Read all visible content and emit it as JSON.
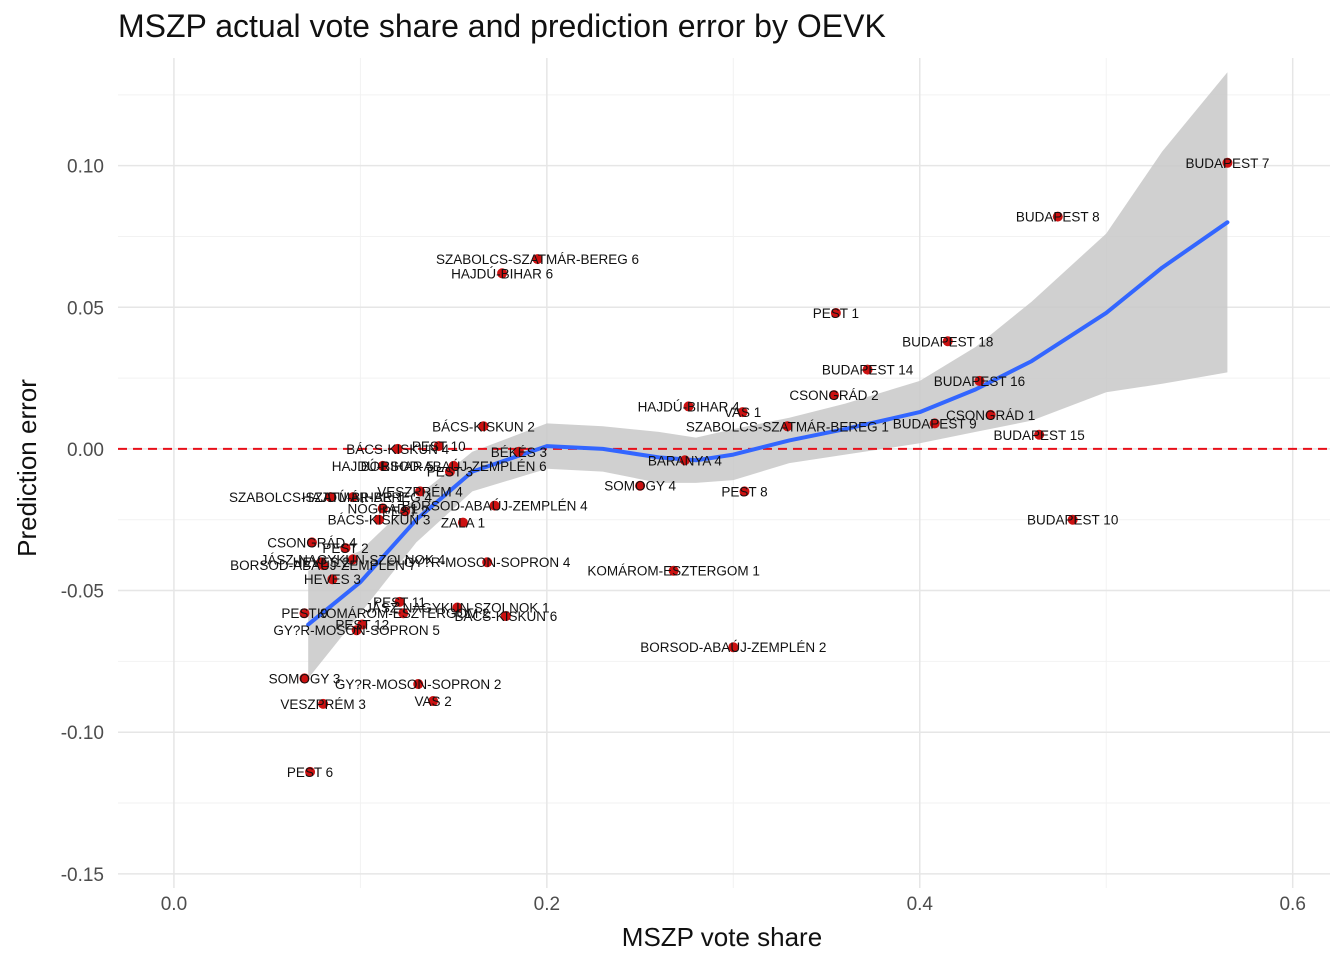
{
  "chart_data": {
    "type": "scatter",
    "title": "MSZP actual vote share and prediction error by OEVK",
    "xlabel": "MSZP vote share",
    "ylabel": "Prediction error",
    "xlim": [
      -0.03,
      0.62
    ],
    "ylim": [
      -0.155,
      0.138
    ],
    "x_ticks": [
      0.0,
      0.2,
      0.4,
      0.6
    ],
    "x_tick_labels": [
      "0.0",
      "0.2",
      "0.4",
      "0.6"
    ],
    "y_ticks": [
      0.1,
      0.05,
      0.0,
      -0.05,
      -0.1,
      -0.15
    ],
    "y_tick_labels": [
      "0.10",
      "0.05",
      "0.00",
      "-0.05",
      "-0.10",
      "-0.15"
    ],
    "grid": true,
    "reference_line": {
      "y": 0,
      "style": "dashed",
      "color": "#e8101a"
    },
    "colors": {
      "point": "#cc1111",
      "smooth": "#3366ff",
      "band": "#c8c8c8"
    },
    "points": [
      {
        "label": "BUDAPEST 7",
        "x": 0.565,
        "y": 0.101
      },
      {
        "label": "BUDAPEST 8",
        "x": 0.474,
        "y": 0.082
      },
      {
        "label": "SZABOLCS-SZATMÁR-BEREG 6",
        "x": 0.195,
        "y": 0.067
      },
      {
        "label": "HAJDÚ-BIHAR 6",
        "x": 0.176,
        "y": 0.062
      },
      {
        "label": "PEST 1",
        "x": 0.355,
        "y": 0.048
      },
      {
        "label": "BUDAPEST 18",
        "x": 0.415,
        "y": 0.038
      },
      {
        "label": "BUDAPEST 14",
        "x": 0.372,
        "y": 0.028
      },
      {
        "label": "BUDAPEST 16",
        "x": 0.432,
        "y": 0.024
      },
      {
        "label": "CSONGRÁD 2",
        "x": 0.354,
        "y": 0.019
      },
      {
        "label": "HAJDÚ-BIHAR 4",
        "x": 0.276,
        "y": 0.015
      },
      {
        "label": "VAS 1",
        "x": 0.305,
        "y": 0.013
      },
      {
        "label": "CSONGRÁD 1",
        "x": 0.438,
        "y": 0.012
      },
      {
        "label": "BUDAPEST 9",
        "x": 0.408,
        "y": 0.009
      },
      {
        "label": "SZABOLCS-SZATMÁR-BEREG 1",
        "x": 0.329,
        "y": 0.008
      },
      {
        "label": "BÁCS-KISKUN 2",
        "x": 0.166,
        "y": 0.008
      },
      {
        "label": "BUDAPEST 15",
        "x": 0.464,
        "y": 0.005
      },
      {
        "label": "PEST 10",
        "x": 0.142,
        "y": 0.001
      },
      {
        "label": "BÁCS-KISKUN 4",
        "x": 0.12,
        "y": 0.0
      },
      {
        "label": "BÉKÉS 3",
        "x": 0.185,
        "y": -0.001
      },
      {
        "label": "BARANYA 4",
        "x": 0.274,
        "y": -0.004
      },
      {
        "label": "HAJDÚ-BIHAR 5",
        "x": 0.112,
        "y": -0.006
      },
      {
        "label": "BORSOD-ABAÚJ-ZEMPLÉN 6",
        "x": 0.15,
        "y": -0.006
      },
      {
        "label": "PEST 3",
        "x": 0.148,
        "y": -0.008
      },
      {
        "label": "SOMOGY 4",
        "x": 0.25,
        "y": -0.013
      },
      {
        "label": "VESZPRÉM 4",
        "x": 0.132,
        "y": -0.015
      },
      {
        "label": "PEST 8",
        "x": 0.306,
        "y": -0.015
      },
      {
        "label": "SZABOLCS-SZATMÁR-BEREG 4",
        "x": 0.084,
        "y": -0.017
      },
      {
        "label": "HAJDÚ-BIHAR 1",
        "x": 0.096,
        "y": -0.017
      },
      {
        "label": "BORSOD-ABAÚJ-ZEMPLÉN 4",
        "x": 0.172,
        "y": -0.02
      },
      {
        "label": "NÓGRÁD 1",
        "x": 0.112,
        "y": -0.021
      },
      {
        "label": "PEST 2",
        "x": 0.124,
        "y": -0.022
      },
      {
        "label": "BÁCS-KISKUN 3",
        "x": 0.11,
        "y": -0.025
      },
      {
        "label": "ZALA 1",
        "x": 0.155,
        "y": -0.026
      },
      {
        "label": "BUDAPEST 10",
        "x": 0.482,
        "y": -0.025
      },
      {
        "label": "CSONGRÁD 4",
        "x": 0.074,
        "y": -0.033
      },
      {
        "label": "PEST 2",
        "x": 0.092,
        "y": -0.035
      },
      {
        "label": "JÁSZ-NAGYKUN-SZOLNOK 4",
        "x": 0.096,
        "y": -0.039
      },
      {
        "label": "HEVES 2",
        "x": 0.079,
        "y": -0.04
      },
      {
        "label": "BORSOD-ABAÚJ-ZEMPLÉN 7",
        "x": 0.08,
        "y": -0.041
      },
      {
        "label": "GY?R-MOSON-SOPRON 4",
        "x": 0.168,
        "y": -0.04
      },
      {
        "label": "HEVES 3",
        "x": 0.085,
        "y": -0.046
      },
      {
        "label": "KOMÁROM-ESZTERGOM 1",
        "x": 0.268,
        "y": -0.043
      },
      {
        "label": "PEST 11",
        "x": 0.121,
        "y": -0.054
      },
      {
        "label": "JÁSZ-NAGYKUN-SZOLNOK 1",
        "x": 0.152,
        "y": -0.056
      },
      {
        "label": "PEST 9",
        "x": 0.07,
        "y": -0.058
      },
      {
        "label": "KOMÁROM-ESZTERGOM 2",
        "x": 0.123,
        "y": -0.058
      },
      {
        "label": "BÁCS-KISKUN 6",
        "x": 0.178,
        "y": -0.059
      },
      {
        "label": "PEST 12",
        "x": 0.101,
        "y": -0.062
      },
      {
        "label": "GY?R-MOSON-SOPRON 5",
        "x": 0.098,
        "y": -0.064
      },
      {
        "label": "BORSOD-ABAÚJ-ZEMPLÉN 2",
        "x": 0.3,
        "y": -0.07
      },
      {
        "label": "SOMOGY 3",
        "x": 0.07,
        "y": -0.081
      },
      {
        "label": "GY?R-MOSON-SOPRON 2",
        "x": 0.131,
        "y": -0.083
      },
      {
        "label": "VESZPRÉM 3",
        "x": 0.08,
        "y": -0.09
      },
      {
        "label": "VAS 2",
        "x": 0.139,
        "y": -0.089
      },
      {
        "label": "PEST 6",
        "x": 0.073,
        "y": -0.114
      }
    ],
    "smooth": {
      "x": [
        0.072,
        0.1,
        0.13,
        0.16,
        0.2,
        0.23,
        0.26,
        0.28,
        0.3,
        0.33,
        0.36,
        0.4,
        0.43,
        0.46,
        0.5,
        0.53,
        0.565
      ],
      "y": [
        -0.062,
        -0.047,
        -0.025,
        -0.008,
        0.001,
        0.0,
        -0.003,
        -0.004,
        -0.002,
        0.003,
        0.007,
        0.013,
        0.021,
        0.031,
        0.048,
        0.064,
        0.08
      ],
      "upper": [
        -0.043,
        -0.036,
        -0.017,
        -0.001,
        0.009,
        0.008,
        0.006,
        0.004,
        0.007,
        0.011,
        0.016,
        0.024,
        0.036,
        0.052,
        0.076,
        0.105,
        0.133
      ],
      "lower": [
        -0.081,
        -0.058,
        -0.033,
        -0.015,
        -0.007,
        -0.008,
        -0.012,
        -0.012,
        -0.011,
        -0.005,
        -0.002,
        0.002,
        0.006,
        0.01,
        0.02,
        0.023,
        0.027
      ]
    }
  }
}
